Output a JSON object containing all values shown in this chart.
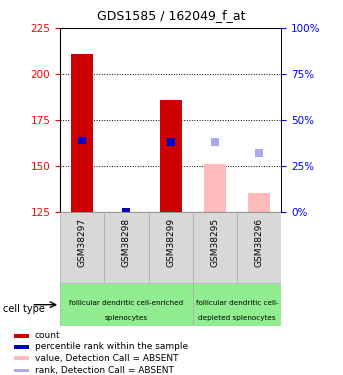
{
  "title": "GDS1585 / 162049_f_at",
  "samples": [
    "GSM38297",
    "GSM38298",
    "GSM38299",
    "GSM38295",
    "GSM38296"
  ],
  "bar_bottom": 125,
  "ylim": [
    125,
    225
  ],
  "y2lim": [
    0,
    100
  ],
  "yticks": [
    125,
    150,
    175,
    200,
    225
  ],
  "y2ticks": [
    0,
    25,
    50,
    75,
    100
  ],
  "gridlines": [
    150,
    175,
    200
  ],
  "bars": {
    "GSM38297": {
      "value": 211,
      "rank": 164,
      "absent": false
    },
    "GSM38298": {
      "value": 125,
      "rank": 125,
      "absent": false
    },
    "GSM38299": {
      "value": 186,
      "rank": 163,
      "absent": false
    },
    "GSM38295": {
      "value": 151,
      "rank_absent": 163,
      "absent": true
    },
    "GSM38296": {
      "value": 135,
      "rank_absent": 157,
      "absent": true
    }
  },
  "bar_color_present": "#cc0000",
  "bar_color_absent": "#ffbbbb",
  "rank_color_present": "#0000cc",
  "rank_color_absent": "#aaaaee",
  "legend_items": [
    {
      "color": "#cc0000",
      "label": "count"
    },
    {
      "color": "#0000cc",
      "label": "percentile rank within the sample"
    },
    {
      "color": "#ffbbbb",
      "label": "value, Detection Call = ABSENT"
    },
    {
      "color": "#aaaaee",
      "label": "rank, Detection Call = ABSENT"
    }
  ],
  "bar_width": 0.5,
  "rank_bar_width": 0.18
}
